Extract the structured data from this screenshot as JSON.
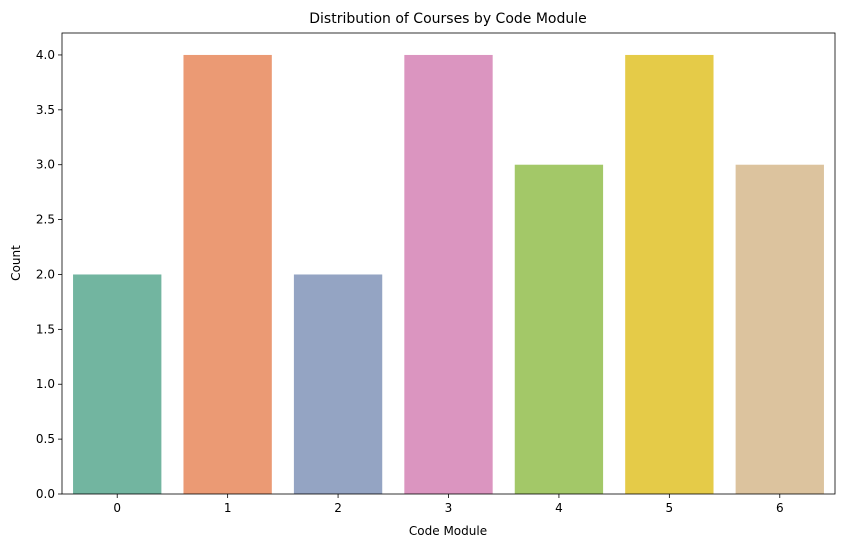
{
  "chart_data": {
    "type": "bar",
    "title": "Distribution of Courses by Code Module",
    "xlabel": "Code Module",
    "ylabel": "Count",
    "categories": [
      "0",
      "1",
      "2",
      "3",
      "4",
      "5",
      "6"
    ],
    "values": [
      2,
      4,
      2,
      4,
      3,
      4,
      3
    ],
    "colors": [
      "#72b5a0",
      "#eb9a74",
      "#94a4c3",
      "#db95c0",
      "#a3c868",
      "#e5cb48",
      "#dcc39e"
    ],
    "ylim": [
      0,
      4.2
    ],
    "yticks": [
      "0.0",
      "0.5",
      "1.0",
      "1.5",
      "2.0",
      "2.5",
      "3.0",
      "3.5",
      "4.0"
    ],
    "grid": false,
    "legend": "none"
  }
}
